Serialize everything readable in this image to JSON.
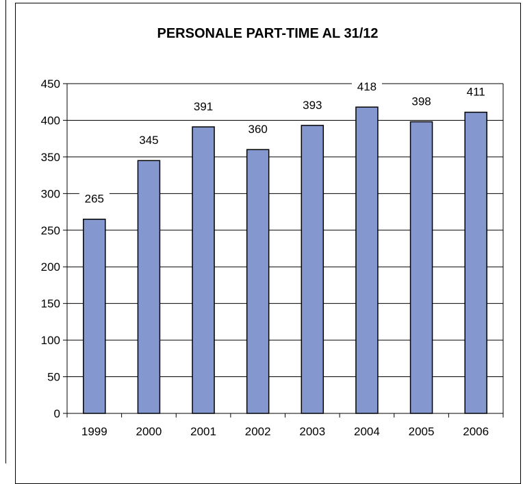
{
  "chart_data": {
    "type": "bar",
    "title": "PERSONALE PART-TIME AL 31/12",
    "xlabel": "",
    "ylabel": "",
    "categories": [
      "1999",
      "2000",
      "2001",
      "2002",
      "2003",
      "2004",
      "2005",
      "2006"
    ],
    "values": [
      265,
      345,
      391,
      360,
      393,
      418,
      398,
      411
    ],
    "data_labels": [
      "265",
      "345",
      "391",
      "360",
      "393",
      "418",
      "398",
      "411"
    ],
    "ylim": [
      0,
      450
    ],
    "yticks": [
      0,
      50,
      100,
      150,
      200,
      250,
      300,
      350,
      400,
      450
    ],
    "ytick_labels": [
      "0",
      "50",
      "100",
      "150",
      "200",
      "250",
      "300",
      "350",
      "400",
      "450"
    ],
    "grid": true,
    "legend": "none",
    "colors": {
      "bar_fill": "#8497CF",
      "bar_stroke": "#000000",
      "gridline": "#000000",
      "axis": "#000000"
    }
  }
}
